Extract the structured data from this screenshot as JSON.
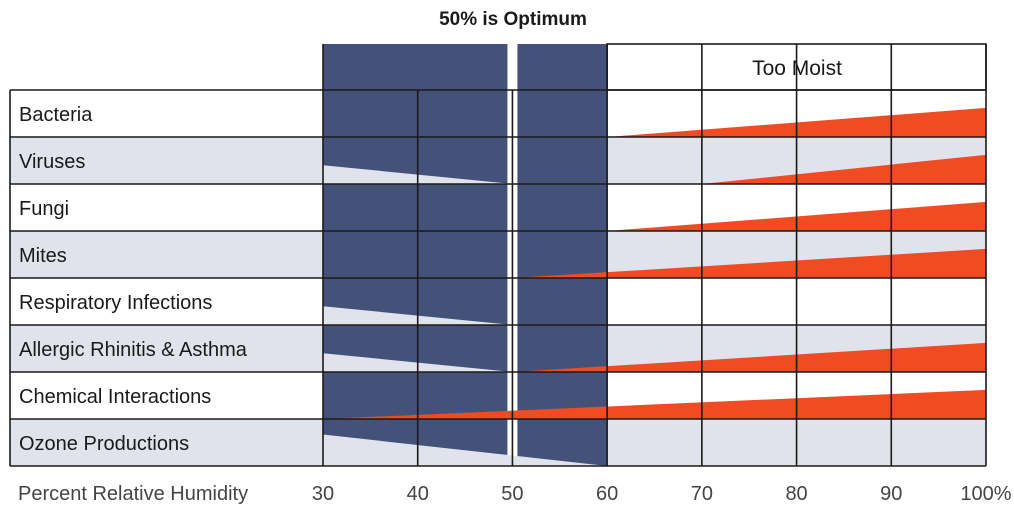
{
  "chart_data": {
    "type": "table",
    "title": "50% is Optimum",
    "zone_label": "Too Moist",
    "xlabel": "Percent Relative Humidity",
    "x_ticks": [
      30,
      40,
      50,
      60,
      70,
      80,
      90,
      100
    ],
    "x_tick_labels": [
      "30",
      "40",
      "50",
      "60",
      "70",
      "80",
      "90",
      "100%"
    ],
    "xlim": [
      30,
      100
    ],
    "optimum_value": 50,
    "optimum_band": [
      30,
      60
    ],
    "colors": {
      "optimum_band": "#44527a",
      "risk_wedge": "#f04b23",
      "too_dry_wedge": "#e0e2ec",
      "row_shade": "#e0e2ec",
      "optimum_line": "#ffffff",
      "grid": "#1a1a1a"
    },
    "rows": [
      {
        "label": "Bacteria",
        "low_risk": null,
        "high_risk": {
          "start": 60,
          "end": 100,
          "rel_height_start": 0,
          "rel_height_end": 0.62
        }
      },
      {
        "label": "Viruses",
        "low_risk": {
          "start": 30,
          "end": 50,
          "rel_height_start": 0.4,
          "rel_height_end": 0
        },
        "high_risk": {
          "start": 70,
          "end": 100,
          "rel_height_start": 0,
          "rel_height_end": 0.62
        }
      },
      {
        "label": "Fungi",
        "low_risk": null,
        "high_risk": {
          "start": 60,
          "end": 100,
          "rel_height_start": 0,
          "rel_height_end": 0.62
        }
      },
      {
        "label": "Mites",
        "low_risk": null,
        "high_risk": {
          "start": 50,
          "end": 100,
          "rel_height_start": 0,
          "rel_height_end": 0.62
        }
      },
      {
        "label": "Respiratory Infections",
        "low_risk": {
          "start": 30,
          "end": 50,
          "rel_height_start": 0.4,
          "rel_height_end": 0
        },
        "high_risk": null
      },
      {
        "label": "Allergic Rhinitis & Asthma",
        "low_risk": {
          "start": 30,
          "end": 50,
          "rel_height_start": 0.4,
          "rel_height_end": 0
        },
        "high_risk": {
          "start": 50,
          "end": 100,
          "rel_height_start": 0,
          "rel_height_end": 0.62
        }
      },
      {
        "label": "Chemical Interactions",
        "low_risk": null,
        "high_risk": {
          "start": 30,
          "end": 100,
          "rel_height_start": 0,
          "rel_height_end": 0.62
        }
      },
      {
        "label": "Ozone Productions",
        "low_risk": {
          "start": 30,
          "end": 60,
          "rel_height_start": 0.4,
          "rel_height_end": 0
        },
        "high_risk": null
      }
    ]
  }
}
